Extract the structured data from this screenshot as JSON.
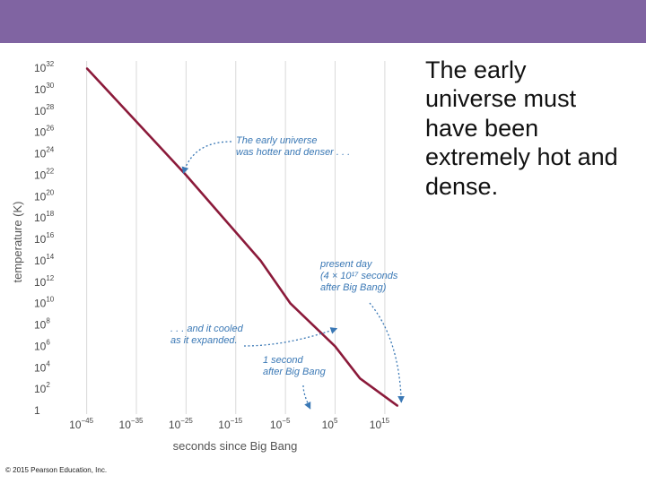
{
  "slide": {
    "header_color": "#8064a2",
    "text_lines": [
      "The early",
      "universe must",
      "have been",
      "extremely hot and",
      "dense."
    ],
    "copyright": "© 2015 Pearson Education, Inc."
  },
  "chart_data": {
    "type": "line",
    "xlabel": "seconds since Big Bang",
    "ylabel": "temperature (K)",
    "x_scale": "log",
    "y_scale": "log",
    "xlim": [
      1e-48,
      1e+17
    ],
    "ylim": [
      1,
      1e+32
    ],
    "x_ticks": [
      {
        "base": "10",
        "exp": "−45",
        "value": 1e-45
      },
      {
        "base": "10",
        "exp": "−35",
        "value": 1e-35
      },
      {
        "base": "10",
        "exp": "−25",
        "value": 1e-25
      },
      {
        "base": "10",
        "exp": "−15",
        "value": 1e-15
      },
      {
        "base": "10",
        "exp": "−5",
        "value": 1e-05
      },
      {
        "base": "10",
        "exp": "5",
        "value": 100000.0
      },
      {
        "base": "10",
        "exp": "15",
        "value": 1000000000000000.0
      }
    ],
    "y_ticks": [
      {
        "base": "1",
        "exp": "",
        "value": 1
      },
      {
        "base": "10",
        "exp": "2",
        "value": 100.0
      },
      {
        "base": "10",
        "exp": "4",
        "value": 10000.0
      },
      {
        "base": "10",
        "exp": "6",
        "value": 1000000.0
      },
      {
        "base": "10",
        "exp": "8",
        "value": 100000000.0
      },
      {
        "base": "10",
        "exp": "10",
        "value": 10000000000.0
      },
      {
        "base": "10",
        "exp": "12",
        "value": 1000000000000.0
      },
      {
        "base": "10",
        "exp": "14",
        "value": 100000000000000.0
      },
      {
        "base": "10",
        "exp": "16",
        "value": 1e+16
      },
      {
        "base": "10",
        "exp": "18",
        "value": 1e+18
      },
      {
        "base": "10",
        "exp": "20",
        "value": 1e+20
      },
      {
        "base": "10",
        "exp": "22",
        "value": 1e+22
      },
      {
        "base": "10",
        "exp": "24",
        "value": 1e+24
      },
      {
        "base": "10",
        "exp": "26",
        "value": 1e+26
      },
      {
        "base": "10",
        "exp": "28",
        "value": 1e+28
      },
      {
        "base": "10",
        "exp": "30",
        "value": 1e+30
      },
      {
        "base": "10",
        "exp": "32",
        "value": 1e+32
      }
    ],
    "grid": "vertical",
    "series": [
      {
        "color": "#8b1a3a",
        "points": [
          {
            "x": 1e-45,
            "y": 1e+32
          },
          {
            "x": 1e-25,
            "y": 1e+22
          },
          {
            "x": 1e-10,
            "y": 100000000000000.0
          },
          {
            "x": 0.0001,
            "y": 10000000000.0
          },
          {
            "x": 100000.0,
            "y": 1000000.0
          },
          {
            "x": 10000000000.0,
            "y": 1000.0
          },
          {
            "x": 4e+17,
            "y": 2.7
          }
        ]
      }
    ],
    "annotations": [
      {
        "lines": [
          "The early universe",
          "was hotter and denser . . ."
        ],
        "x": 1e-25,
        "y": 1e+22
      },
      {
        "lines": [
          "present day",
          "(4 × 10¹⁷ seconds",
          "after Big Bang)"
        ],
        "x": 4e+17,
        "y": 2.7
      },
      {
        "lines": [
          ". . . and it cooled",
          "as it expanded."
        ],
        "x": 100000.0,
        "y": 100000000.0
      },
      {
        "lines": [
          "1 second",
          "after Big Bang"
        ],
        "x": 1,
        "y": 1
      }
    ],
    "annotation_color": "#3a78b5"
  }
}
